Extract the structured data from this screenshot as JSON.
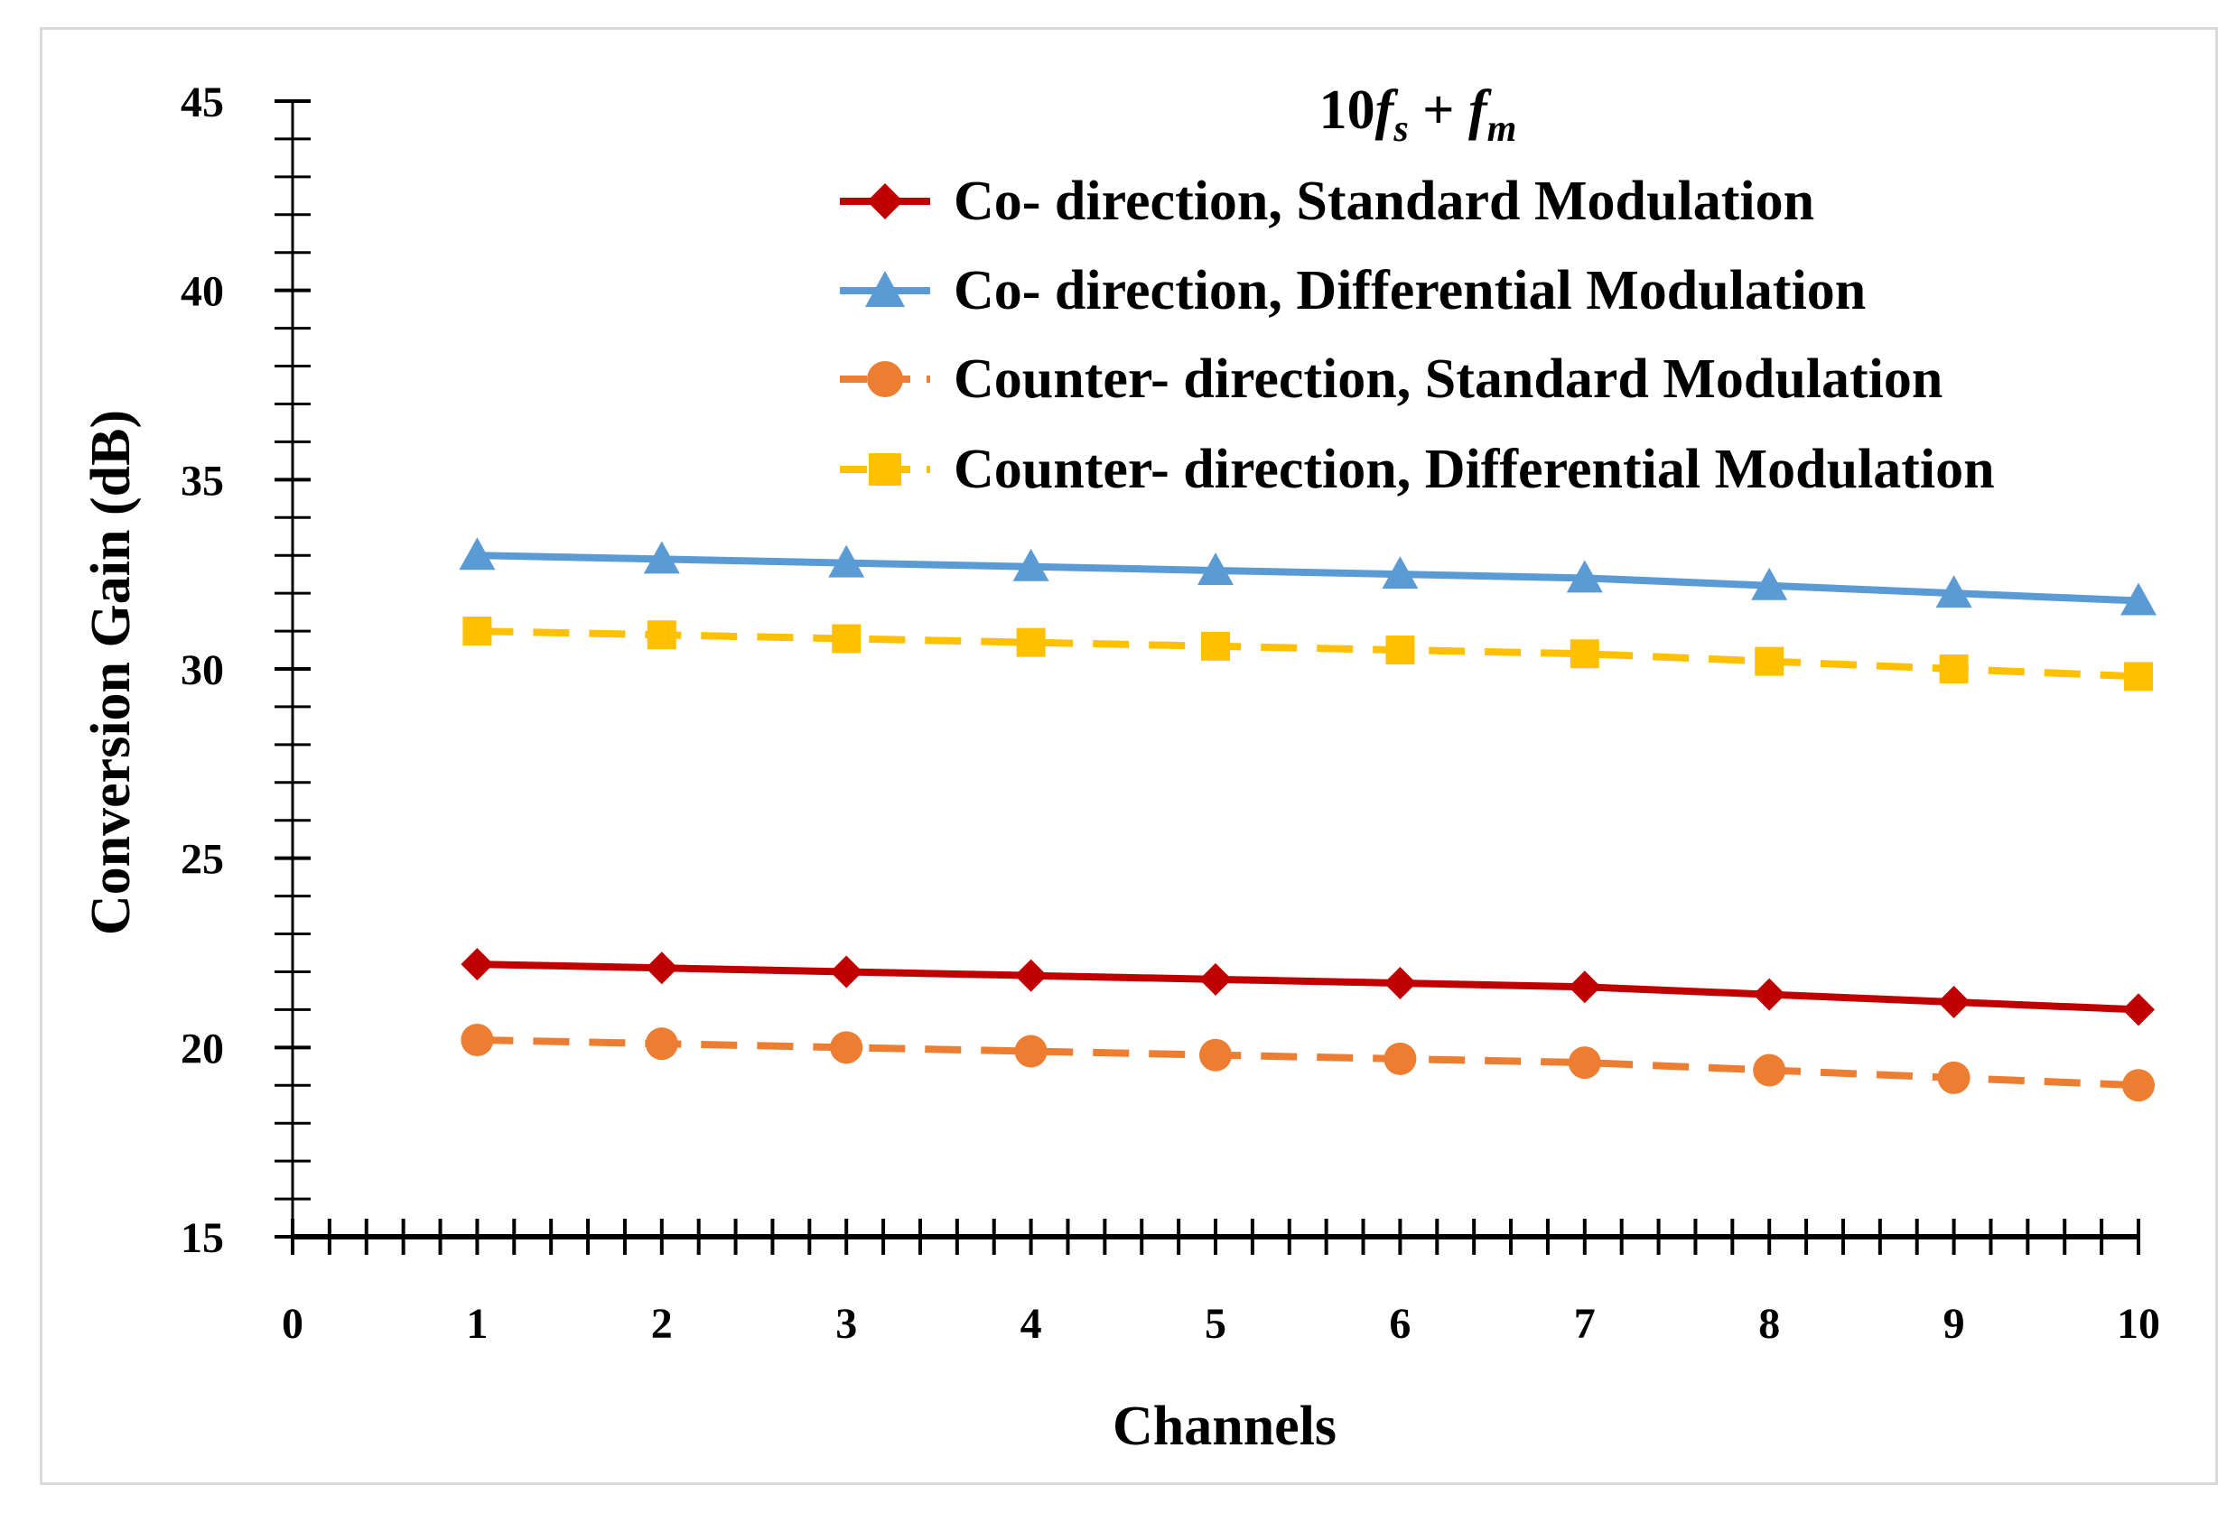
{
  "chart_data": {
    "type": "line",
    "title": "10f_s + f_m",
    "title_parts": {
      "lead": "10",
      "f1": "f",
      "sub1": "s",
      "op": " + ",
      "f2": "f",
      "sub2": "m"
    },
    "xlabel": "Channels",
    "ylabel": "Conversion Gain (dB)",
    "xlim": [
      0,
      10
    ],
    "ylim": [
      15,
      45
    ],
    "x_ticks": [
      "0",
      "1",
      "2",
      "3",
      "4",
      "5",
      "6",
      "7",
      "8",
      "9",
      "10"
    ],
    "y_ticks": [
      "15",
      "20",
      "25",
      "30",
      "35",
      "40",
      "45"
    ],
    "x": [
      1,
      2,
      3,
      4,
      5,
      6,
      7,
      8,
      9,
      10
    ],
    "legend_position": "top-right",
    "series": [
      {
        "name": "Co- direction, Standard Modulation",
        "color": "#c00000",
        "line": "solid",
        "marker": "diamond",
        "values": [
          22.2,
          22.1,
          22.0,
          21.9,
          21.8,
          21.7,
          21.6,
          21.4,
          21.2,
          21.0
        ]
      },
      {
        "name": "Co- direction, Differential Modulation",
        "color": "#5b9bd5",
        "line": "solid",
        "marker": "triangle",
        "values": [
          33.0,
          32.9,
          32.8,
          32.7,
          32.6,
          32.5,
          32.4,
          32.2,
          32.0,
          31.8
        ]
      },
      {
        "name": "Counter- direction, Standard Modulation",
        "color": "#ed7d31",
        "line": "dashed",
        "marker": "circle",
        "values": [
          20.2,
          20.1,
          20.0,
          19.9,
          19.8,
          19.7,
          19.6,
          19.4,
          19.2,
          19.0
        ]
      },
      {
        "name": "Counter- direction, Differential Modulation",
        "color": "#ffc000",
        "line": "dashed",
        "marker": "square",
        "values": [
          31.0,
          30.9,
          30.8,
          30.7,
          30.6,
          30.5,
          30.4,
          30.2,
          30.0,
          29.8
        ]
      }
    ]
  }
}
